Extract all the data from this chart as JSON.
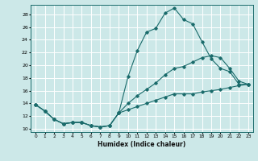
{
  "xlabel": "Humidex (Indice chaleur)",
  "bg_color": "#cce8e8",
  "grid_color": "#ffffff",
  "line_color": "#1a6b6b",
  "xlim": [
    -0.5,
    23.5
  ],
  "ylim": [
    9.5,
    29.5
  ],
  "xticks": [
    0,
    1,
    2,
    3,
    4,
    5,
    6,
    7,
    8,
    9,
    10,
    11,
    12,
    13,
    14,
    15,
    16,
    17,
    18,
    19,
    20,
    21,
    22,
    23
  ],
  "yticks": [
    10,
    12,
    14,
    16,
    18,
    20,
    22,
    24,
    26,
    28
  ],
  "line1_x": [
    0,
    1,
    2,
    3,
    4,
    5,
    6,
    7,
    8,
    9,
    10,
    11,
    12,
    13,
    14,
    15,
    16,
    17,
    18,
    19,
    20,
    21,
    22,
    23
  ],
  "line1_y": [
    13.8,
    12.8,
    11.5,
    10.8,
    11.0,
    11.0,
    10.5,
    10.3,
    10.5,
    12.5,
    18.2,
    22.3,
    25.2,
    25.8,
    28.2,
    29.0,
    27.2,
    26.5,
    23.7,
    21.0,
    19.5,
    19.0,
    17.0,
    17.0
  ],
  "line2_x": [
    0,
    1,
    2,
    3,
    4,
    5,
    6,
    7,
    8,
    9,
    10,
    11,
    12,
    13,
    14,
    15,
    16,
    17,
    18,
    19,
    20,
    21,
    22,
    23
  ],
  "line2_y": [
    13.8,
    12.8,
    11.5,
    10.8,
    11.0,
    11.0,
    10.5,
    10.3,
    10.5,
    12.5,
    14.0,
    15.2,
    16.2,
    17.2,
    18.5,
    19.5,
    19.8,
    20.5,
    21.2,
    21.5,
    21.2,
    19.5,
    17.5,
    17.0
  ],
  "line3_x": [
    0,
    1,
    2,
    3,
    4,
    5,
    6,
    7,
    8,
    9,
    10,
    11,
    12,
    13,
    14,
    15,
    16,
    17,
    18,
    19,
    20,
    21,
    22,
    23
  ],
  "line3_y": [
    13.8,
    12.8,
    11.5,
    10.8,
    11.0,
    11.0,
    10.5,
    10.3,
    10.5,
    12.5,
    13.0,
    13.5,
    14.0,
    14.5,
    15.0,
    15.5,
    15.5,
    15.5,
    15.8,
    16.0,
    16.2,
    16.5,
    16.8,
    17.0
  ]
}
